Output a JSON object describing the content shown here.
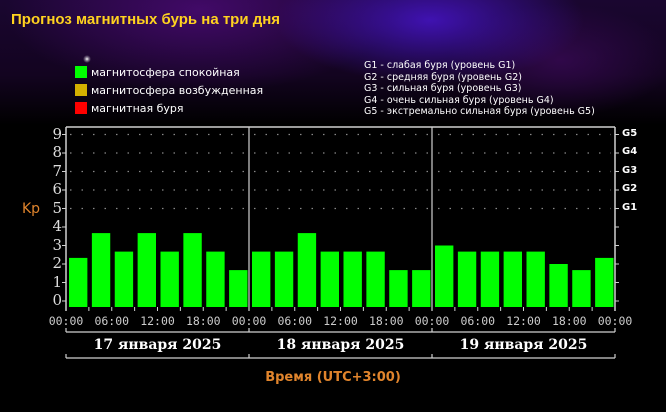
{
  "header": {
    "title": "Прогноз магнитных бурь на три дня"
  },
  "legend": {
    "items": [
      {
        "label": "магнитосфера спокойная",
        "color": "#00ff00"
      },
      {
        "label": "магнитосфера возбужденная",
        "color": "#d4b000"
      },
      {
        "label": "магнитная буря",
        "color": "#ff0000"
      }
    ]
  },
  "g_legend": {
    "items": [
      "G1 - слабая буря (уровень G1)",
      "G2 - средняя буря (уровень G2)",
      "G3 - сильная буря (уровень G3)",
      "G4 - очень сильная буря (уровень G4)",
      "G5 - экстремально сильная буря (уровень G5)"
    ]
  },
  "axes": {
    "ylabel": "Kp",
    "yticks": [
      "0",
      "1",
      "2",
      "3",
      "4",
      "5",
      "6",
      "7",
      "8",
      "9"
    ],
    "g_ticks": [
      "G1",
      "G2",
      "G3",
      "G4",
      "G5"
    ],
    "xticks": [
      "00:00",
      "06:00",
      "12:00",
      "18:00",
      "00:00",
      "06:00",
      "12:00",
      "18:00",
      "00:00",
      "06:00",
      "12:00",
      "18:00",
      "00:00"
    ],
    "days": [
      "17 января 2025",
      "18 января 2025",
      "19 января 2025"
    ],
    "xlabel": "Время (UTC+3:00)"
  },
  "colors": {
    "bar": "#00ff00",
    "axis": "#d0d0d0",
    "accent_orange": "#e0842c",
    "title_yellow": "#ffd21f"
  },
  "chart_data": {
    "type": "bar",
    "title": "Прогноз магнитных бурь на три дня",
    "xlabel": "Время (UTC+3:00)",
    "ylabel": "Kp",
    "ylim": [
      0,
      9
    ],
    "grid": "dotted horizontal lines at Kp 5-9",
    "legend_position": "top",
    "categories": [
      "17.01 00:00",
      "17.01 03:00",
      "17.01 06:00",
      "17.01 09:00",
      "17.01 12:00",
      "17.01 15:00",
      "17.01 18:00",
      "17.01 21:00",
      "18.01 00:00",
      "18.01 03:00",
      "18.01 06:00",
      "18.01 09:00",
      "18.01 12:00",
      "18.01 15:00",
      "18.01 18:00",
      "18.01 21:00",
      "19.01 00:00",
      "19.01 03:00",
      "19.01 06:00",
      "19.01 09:00",
      "19.01 12:00",
      "19.01 15:00",
      "19.01 18:00",
      "19.01 21:00"
    ],
    "series": [
      {
        "name": "Kp",
        "values": [
          2.33,
          3.67,
          2.67,
          3.67,
          2.67,
          3.67,
          2.67,
          1.67,
          2.67,
          2.67,
          3.67,
          2.67,
          2.67,
          2.67,
          1.67,
          1.67,
          3.0,
          2.67,
          2.67,
          2.67,
          2.67,
          2.0,
          1.67,
          2.33
        ]
      }
    ],
    "secondary_axis": {
      "labels": [
        "G1",
        "G2",
        "G3",
        "G4",
        "G5"
      ],
      "at_kp": [
        5,
        6,
        7,
        8,
        9
      ]
    }
  }
}
